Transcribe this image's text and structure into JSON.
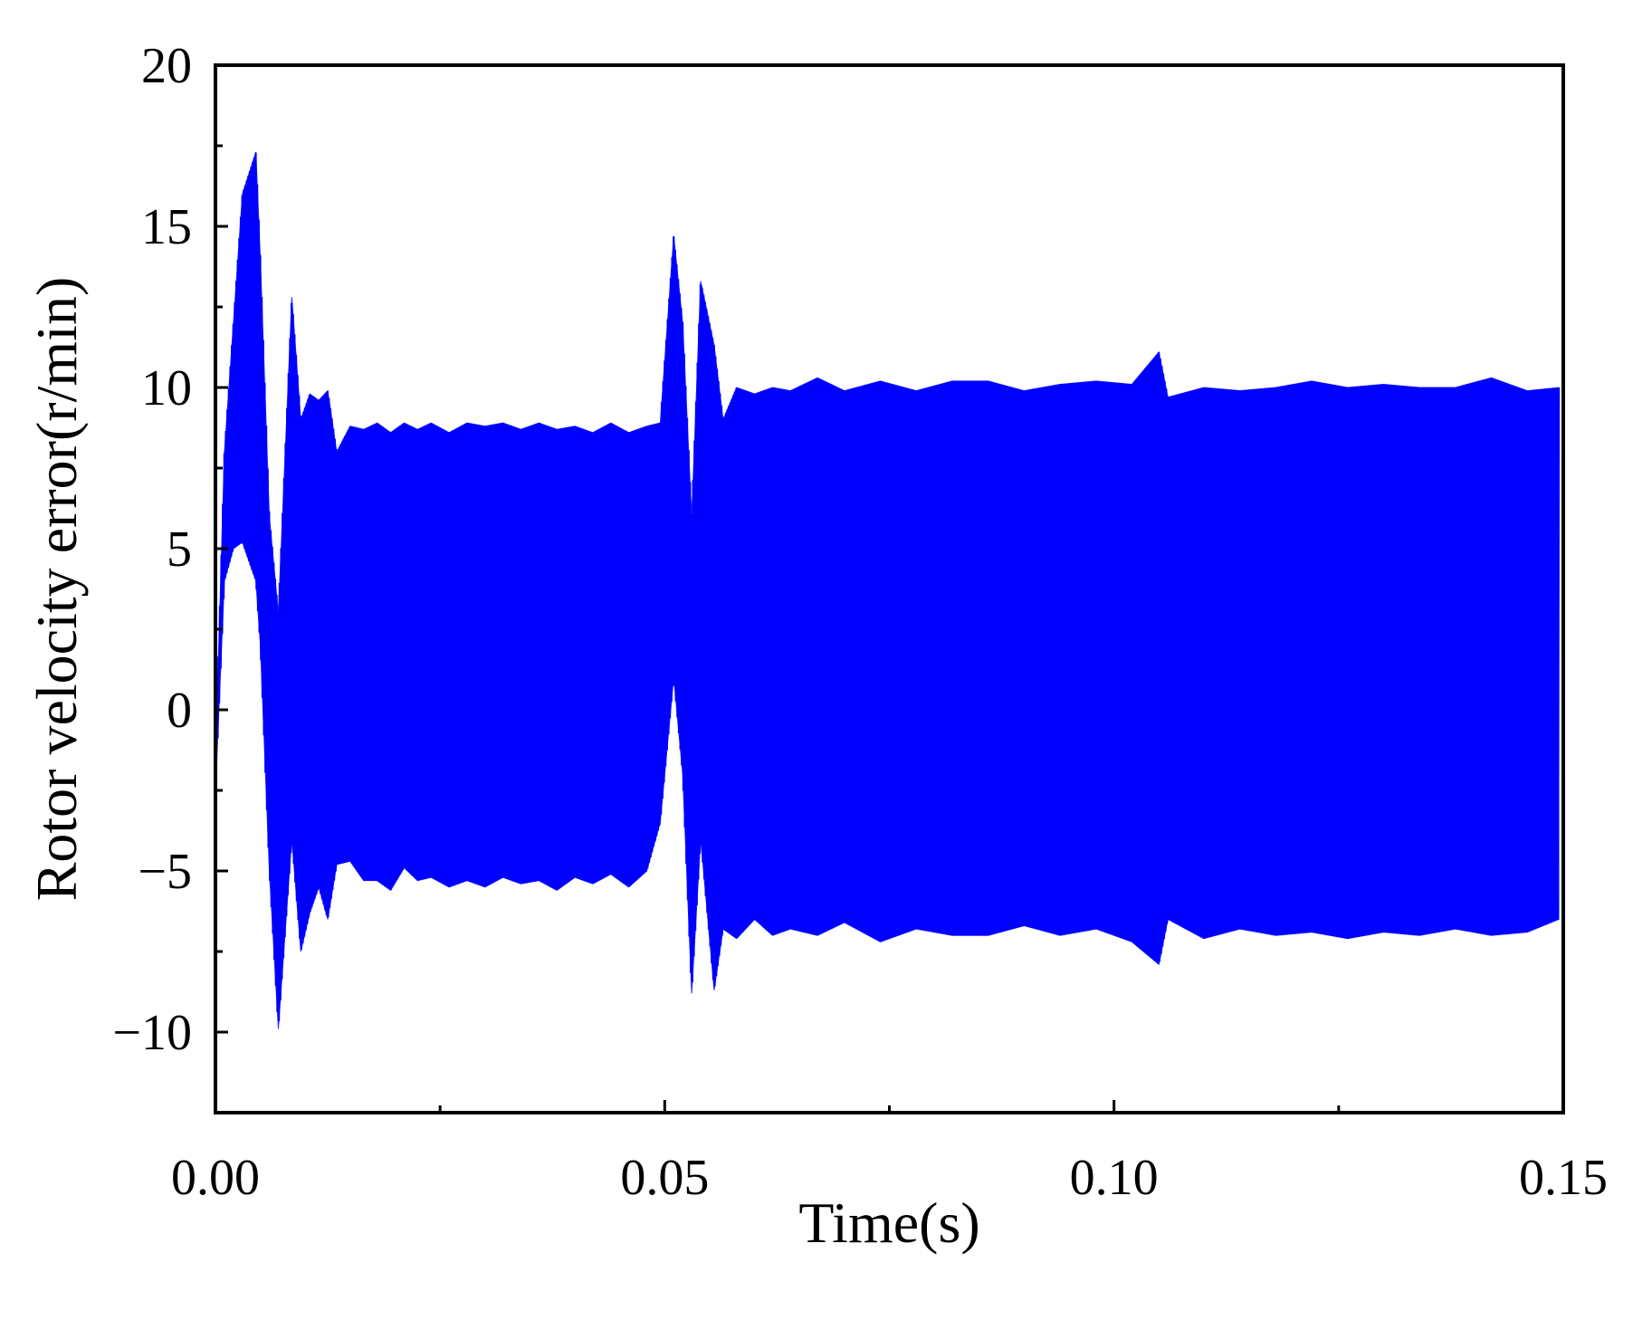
{
  "chart_data": {
    "type": "line",
    "title": "",
    "xlabel": "Time(s)",
    "ylabel": "Rotor velocity error(r/min)",
    "xlim": [
      0,
      0.15
    ],
    "ylim": [
      -12.5,
      20
    ],
    "xticks": [
      0.0,
      0.05,
      0.1,
      0.15
    ],
    "xtick_labels": [
      "0.00",
      "0.05",
      "0.10",
      "0.15"
    ],
    "xticks_minor": [
      0.025,
      0.075,
      0.125
    ],
    "yticks": [
      -10,
      -5,
      0,
      5,
      10,
      15,
      20
    ],
    "ytick_labels": [
      "−10",
      "−5",
      "0",
      "5",
      "10",
      "15",
      "20"
    ],
    "yticks_minor": [
      -7.5,
      -2.5,
      2.5,
      7.5,
      12.5,
      17.5
    ],
    "grid": false,
    "legend": "none",
    "line_color": "#0000FF",
    "series": [
      {
        "values_description_note": "",
        "x": [
          0.0,
          0.001,
          0.002,
          0.003,
          0.0045,
          0.005,
          0.006,
          0.007,
          0.0085,
          0.0095,
          0.0105,
          0.0115,
          0.0125,
          0.0135,
          0.015,
          0.0165,
          0.018,
          0.0195,
          0.021,
          0.0225,
          0.024,
          0.026,
          0.028,
          0.03,
          0.032,
          0.034,
          0.036,
          0.038,
          0.04,
          0.042,
          0.044,
          0.046,
          0.048,
          0.0495,
          0.051,
          0.052,
          0.053,
          0.054,
          0.0555,
          0.0565,
          0.058,
          0.06,
          0.062,
          0.064,
          0.067,
          0.07,
          0.074,
          0.078,
          0.082,
          0.086,
          0.09,
          0.094,
          0.098,
          0.102,
          0.105,
          0.106,
          0.11,
          0.114,
          0.118,
          0.122,
          0.126,
          0.13,
          0.134,
          0.138,
          0.142,
          0.146,
          0.1495
        ],
        "upper": [
          -1.5,
          8.0,
          12.0,
          16.0,
          17.3,
          14.0,
          6.0,
          3.0,
          12.8,
          9.0,
          9.8,
          9.6,
          9.9,
          8.0,
          8.8,
          8.7,
          8.9,
          8.6,
          8.9,
          8.7,
          8.9,
          8.6,
          8.9,
          8.8,
          8.9,
          8.7,
          8.9,
          8.7,
          8.8,
          8.6,
          8.9,
          8.6,
          8.8,
          8.9,
          14.7,
          12.0,
          6.0,
          13.3,
          11.3,
          9.0,
          10.0,
          9.8,
          10.0,
          9.9,
          10.3,
          9.9,
          10.2,
          9.9,
          10.2,
          10.2,
          9.9,
          10.1,
          10.2,
          10.1,
          11.1,
          9.7,
          10.0,
          9.9,
          10.0,
          10.2,
          10.0,
          10.1,
          10.0,
          10.0,
          10.3,
          9.9,
          10.0
        ],
        "lower": [
          -2.5,
          4.0,
          5.0,
          5.2,
          4.0,
          2.0,
          -5.0,
          -9.9,
          -4.0,
          -7.5,
          -6.3,
          -5.5,
          -6.5,
          -4.8,
          -4.7,
          -5.3,
          -5.3,
          -5.6,
          -4.9,
          -5.3,
          -5.2,
          -5.5,
          -5.3,
          -5.5,
          -5.2,
          -5.4,
          -5.3,
          -5.6,
          -5.2,
          -5.4,
          -5.1,
          -5.5,
          -5.0,
          -3.5,
          1.0,
          -2.0,
          -8.8,
          -4.0,
          -8.7,
          -6.8,
          -7.1,
          -6.5,
          -7.0,
          -6.8,
          -7.0,
          -6.6,
          -7.2,
          -6.8,
          -7.0,
          -7.0,
          -6.7,
          -7.0,
          -6.8,
          -7.2,
          -7.9,
          -6.5,
          -7.1,
          -6.8,
          -7.0,
          -6.9,
          -7.1,
          -6.9,
          -7.0,
          -6.8,
          -7.0,
          -6.9,
          -6.5
        ]
      }
    ]
  }
}
